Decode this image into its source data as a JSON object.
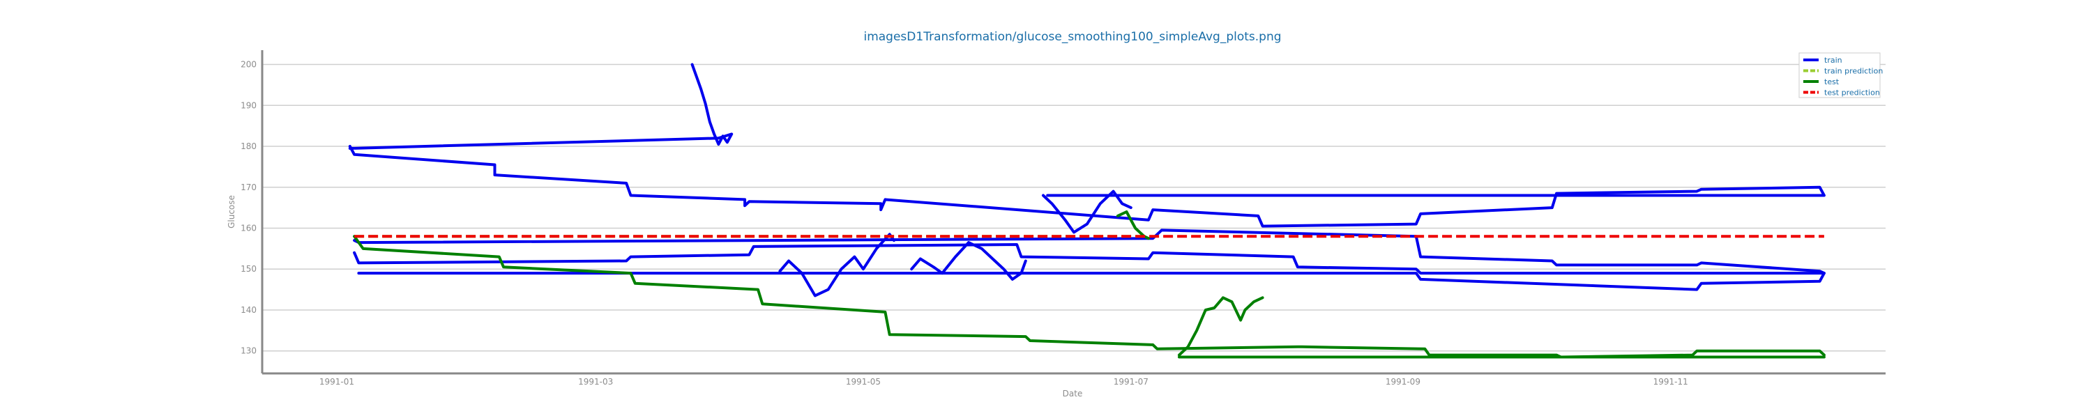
{
  "chart_data": {
    "type": "line",
    "title": "imagesD1Transformation/glucose_smoothing100_simpleAvg_plots.png",
    "xlabel": "Date",
    "ylabel": "Glucose",
    "x_ticks": [
      "1991-01",
      "1991-03",
      "1991-05",
      "1991-07",
      "1991-09",
      "1991-11"
    ],
    "y_ticks": [
      130,
      140,
      150,
      160,
      170,
      180,
      190,
      200
    ],
    "xlim": [
      "1990-12-15",
      "1991-12-20"
    ],
    "ylim": [
      124.5,
      203.5
    ],
    "grid": "horizontal",
    "legend_position": "top-right",
    "series": [
      {
        "name": "train",
        "color": "#0000ee",
        "style": "solid",
        "points": [
          [
            "1991-01-04",
            180
          ],
          [
            "1991-01-05",
            178
          ],
          [
            "1991-02-06",
            175.5
          ],
          [
            "1991-02-06",
            173
          ],
          [
            "1991-03-08",
            171
          ],
          [
            "1991-03-09",
            168
          ],
          [
            "1991-04-04",
            167
          ],
          [
            "1991-04-04",
            165.5
          ],
          [
            "1991-04-05",
            166.5
          ],
          [
            "1991-05-05",
            166
          ],
          [
            "1991-05-05",
            164.5
          ],
          [
            "1991-05-06",
            167
          ],
          [
            "1991-07-05",
            162
          ],
          [
            "1991-07-06",
            164.5
          ],
          [
            "1991-07-30",
            163
          ],
          [
            "1991-07-31",
            160.5
          ],
          [
            "1991-09-04",
            161
          ],
          [
            "1991-09-05",
            163.5
          ],
          [
            "1991-10-05",
            165
          ],
          [
            "1991-10-06",
            168.5
          ],
          [
            "1991-11-07",
            169
          ],
          [
            "1991-11-08",
            169.5
          ],
          [
            "1991-12-05",
            170
          ],
          [
            "1991-12-06",
            168
          ],
          [
            "1991-06-12",
            168
          ],
          [
            "1991-12-06",
            168
          ]
        ]
      },
      {
        "name": "train 2",
        "color": "#0000ee",
        "style": "solid",
        "points": [
          [
            "1991-03-23",
            200
          ],
          [
            "1991-03-24",
            197
          ],
          [
            "1991-03-25",
            194
          ],
          [
            "1991-03-26",
            190.5
          ],
          [
            "1991-03-27",
            186
          ],
          [
            "1991-03-28",
            183
          ],
          [
            "1991-03-29",
            180.5
          ],
          [
            "1991-03-30",
            182.5
          ],
          [
            "1991-03-31",
            181
          ],
          [
            "1991-04-01",
            183
          ],
          [
            "1991-03-29",
            182
          ],
          [
            "1991-01-04",
            179.5
          ]
        ]
      },
      {
        "name": "train 3",
        "color": "#0000ee",
        "style": "solid",
        "points": [
          [
            "1991-01-05",
            157
          ],
          [
            "1991-01-06",
            156.5
          ],
          [
            "1991-07-06",
            157.5
          ],
          [
            "1991-07-08",
            159.5
          ],
          [
            "1991-09-04",
            158
          ],
          [
            "1991-09-05",
            153
          ],
          [
            "1991-10-05",
            152
          ],
          [
            "1991-10-06",
            151
          ],
          [
            "1991-11-07",
            151
          ],
          [
            "1991-11-08",
            151.5
          ],
          [
            "1991-12-05",
            149.5
          ],
          [
            "1991-12-06",
            149
          ],
          [
            "1991-12-05",
            147
          ],
          [
            "1991-11-08",
            146.5
          ],
          [
            "1991-11-07",
            145
          ],
          [
            "1991-09-05",
            147.5
          ],
          [
            "1991-09-04",
            149
          ],
          [
            "1991-01-06",
            149
          ]
        ]
      },
      {
        "name": "train 4",
        "color": "#0000ee",
        "style": "solid",
        "points": [
          [
            "1991-01-05",
            154
          ],
          [
            "1991-01-06",
            151.5
          ],
          [
            "1991-03-08",
            152
          ],
          [
            "1991-03-09",
            153
          ],
          [
            "1991-04-05",
            153.5
          ],
          [
            "1991-04-06",
            155.5
          ],
          [
            "1991-06-05",
            156
          ],
          [
            "1991-06-06",
            153
          ],
          [
            "1991-07-05",
            152.5
          ],
          [
            "1991-07-06",
            154
          ],
          [
            "1991-08-07",
            153
          ],
          [
            "1991-08-08",
            150.5
          ],
          [
            "1991-09-04",
            150
          ],
          [
            "1991-09-05",
            149
          ],
          [
            "1991-12-06",
            149
          ]
        ]
      },
      {
        "name": "train 5",
        "color": "#0000ee",
        "style": "solid",
        "points": [
          [
            "1991-04-12",
            149.5
          ],
          [
            "1991-04-14",
            152
          ],
          [
            "1991-04-17",
            149
          ],
          [
            "1991-04-20",
            143.5
          ],
          [
            "1991-04-23",
            145
          ],
          [
            "1991-04-26",
            150
          ],
          [
            "1991-04-29",
            153
          ],
          [
            "1991-05-01",
            150
          ],
          [
            "1991-05-04",
            155
          ],
          [
            "1991-05-07",
            158.5
          ],
          [
            "1991-05-08",
            157
          ]
        ]
      },
      {
        "name": "train 6",
        "color": "#0000ee",
        "style": "solid",
        "points": [
          [
            "1991-05-12",
            150
          ],
          [
            "1991-05-14",
            152.5
          ],
          [
            "1991-05-17",
            150.5
          ],
          [
            "1991-05-19",
            149
          ],
          [
            "1991-05-22",
            153
          ],
          [
            "1991-05-25",
            156.5
          ],
          [
            "1991-05-28",
            155
          ],
          [
            "1991-05-31",
            152
          ],
          [
            "1991-06-02",
            150
          ],
          [
            "1991-06-04",
            147.5
          ],
          [
            "1991-06-06",
            149
          ],
          [
            "1991-06-07",
            152
          ]
        ]
      },
      {
        "name": "train 7",
        "color": "#0000ee",
        "style": "solid",
        "points": [
          [
            "1991-06-11",
            168
          ],
          [
            "1991-06-13",
            166
          ],
          [
            "1991-06-16",
            162
          ],
          [
            "1991-06-18",
            159
          ],
          [
            "1991-06-21",
            161
          ],
          [
            "1991-06-24",
            166
          ],
          [
            "1991-06-27",
            169
          ],
          [
            "1991-06-29",
            166
          ],
          [
            "1991-07-01",
            165
          ]
        ]
      },
      {
        "name": "train prediction",
        "color": "#9acd32",
        "style": "dashed",
        "points": [
          [
            "1991-01-05",
            158
          ],
          [
            "1991-07-05",
            158
          ]
        ]
      },
      {
        "name": "test",
        "color": "#008000",
        "style": "solid",
        "points": [
          [
            "1991-01-05",
            158
          ],
          [
            "1991-01-07",
            155
          ],
          [
            "1991-02-07",
            153
          ],
          [
            "1991-02-08",
            150.5
          ],
          [
            "1991-03-09",
            149
          ],
          [
            "1991-03-10",
            146.5
          ],
          [
            "1991-04-07",
            145
          ],
          [
            "1991-04-08",
            141.5
          ],
          [
            "1991-05-06",
            139.5
          ],
          [
            "1991-05-07",
            134
          ],
          [
            "1991-06-07",
            133.5
          ],
          [
            "1991-06-08",
            132.5
          ],
          [
            "1991-07-06",
            131.5
          ],
          [
            "1991-07-07",
            130.5
          ],
          [
            "1991-08-08",
            131
          ],
          [
            "1991-08-09",
            131
          ],
          [
            "1991-09-06",
            130.5
          ],
          [
            "1991-09-07",
            129
          ],
          [
            "1991-10-06",
            129
          ],
          [
            "1991-10-07",
            128.5
          ],
          [
            "1991-11-06",
            129
          ],
          [
            "1991-11-07",
            130
          ],
          [
            "1991-12-05",
            130
          ],
          [
            "1991-12-06",
            129
          ]
        ]
      },
      {
        "name": "test 2",
        "color": "#008000",
        "style": "solid",
        "points": [
          [
            "1991-07-12",
            128.5
          ],
          [
            "1991-12-06",
            128.5
          ]
        ]
      },
      {
        "name": "test 3",
        "color": "#008000",
        "style": "solid",
        "points": [
          [
            "1991-07-12",
            129
          ],
          [
            "1991-07-14",
            131
          ],
          [
            "1991-07-16",
            135
          ],
          [
            "1991-07-18",
            140
          ],
          [
            "1991-07-20",
            140.5
          ],
          [
            "1991-07-22",
            143
          ],
          [
            "1991-07-24",
            142
          ],
          [
            "1991-07-26",
            137.5
          ],
          [
            "1991-07-27",
            140
          ],
          [
            "1991-07-29",
            142
          ],
          [
            "1991-07-31",
            143
          ]
        ]
      },
      {
        "name": "test 4",
        "color": "#008000",
        "style": "solid",
        "points": [
          [
            "1991-06-28",
            163
          ],
          [
            "1991-06-30",
            164
          ],
          [
            "1991-07-02",
            160
          ],
          [
            "1991-07-04",
            158
          ],
          [
            "1991-07-05",
            157.5
          ]
        ]
      },
      {
        "name": "test prediction",
        "color": "#ee0000",
        "style": "dashed",
        "points": [
          [
            "1991-01-05",
            158
          ],
          [
            "1991-12-06",
            158
          ]
        ]
      }
    ],
    "legend": [
      {
        "label": "train",
        "color": "#0000ee",
        "style": "solid"
      },
      {
        "label": "train prediction",
        "color": "#9acd32",
        "style": "dashed"
      },
      {
        "label": "test",
        "color": "#008000",
        "style": "solid"
      },
      {
        "label": "test prediction",
        "color": "#ee0000",
        "style": "dashed"
      }
    ]
  }
}
